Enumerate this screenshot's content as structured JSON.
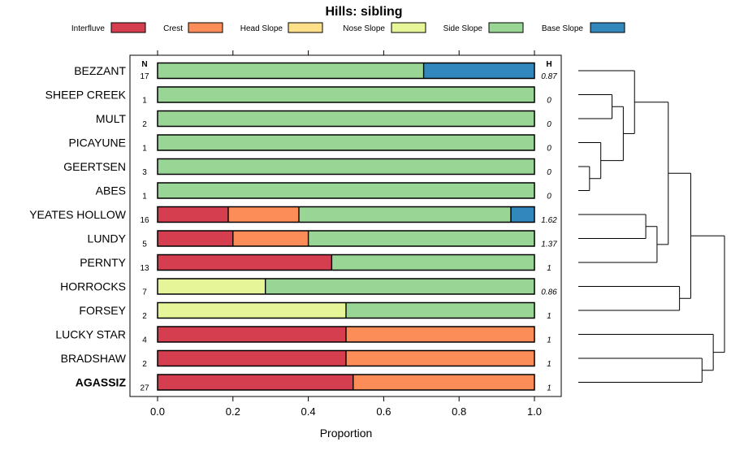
{
  "chart_data": {
    "type": "stacked-horizontal-bar",
    "title": "Hills: sibling",
    "xlabel": "Proportion",
    "xlim": [
      0,
      1
    ],
    "xticks": [
      "0.0",
      "0.2",
      "0.4",
      "0.6",
      "0.8",
      "1.0"
    ],
    "n_header": "N",
    "h_header": "H",
    "legend": [
      {
        "name": "Interfluve",
        "color": "#d53e4f"
      },
      {
        "name": "Crest",
        "color": "#fc8d59"
      },
      {
        "name": "Head Slope",
        "color": "#fee08b"
      },
      {
        "name": "Nose Slope",
        "color": "#e6f598"
      },
      {
        "name": "Side Slope",
        "color": "#99d594"
      },
      {
        "name": "Base Slope",
        "color": "#3288bd"
      }
    ],
    "series_names": [
      "Interfluve",
      "Crest",
      "Head Slope",
      "Nose Slope",
      "Side Slope",
      "Base Slope"
    ],
    "rows": [
      {
        "name": "BEZZANT",
        "n": "17",
        "h": "0.87",
        "bold": false,
        "values": [
          0,
          0,
          0,
          0,
          0.706,
          0.294
        ]
      },
      {
        "name": "SHEEP CREEK",
        "n": "1",
        "h": "0",
        "bold": false,
        "values": [
          0,
          0,
          0,
          0,
          1,
          0
        ]
      },
      {
        "name": "MULT",
        "n": "2",
        "h": "0",
        "bold": false,
        "values": [
          0,
          0,
          0,
          0,
          1,
          0
        ]
      },
      {
        "name": "PICAYUNE",
        "n": "1",
        "h": "0",
        "bold": false,
        "values": [
          0,
          0,
          0,
          0,
          1,
          0
        ]
      },
      {
        "name": "GEERTSEN",
        "n": "3",
        "h": "0",
        "bold": false,
        "values": [
          0,
          0,
          0,
          0,
          1,
          0
        ]
      },
      {
        "name": "ABES",
        "n": "1",
        "h": "0",
        "bold": false,
        "values": [
          0,
          0,
          0,
          0,
          1,
          0
        ]
      },
      {
        "name": "YEATES HOLLOW",
        "n": "16",
        "h": "1.62",
        "bold": false,
        "values": [
          0.1875,
          0.1875,
          0,
          0,
          0.5625,
          0.0625
        ]
      },
      {
        "name": "LUNDY",
        "n": "5",
        "h": "1.37",
        "bold": false,
        "values": [
          0.2,
          0.2,
          0,
          0,
          0.6,
          0
        ]
      },
      {
        "name": "PERNTY",
        "n": "13",
        "h": "1",
        "bold": false,
        "values": [
          0.462,
          0,
          0,
          0,
          0.538,
          0
        ]
      },
      {
        "name": "HORROCKS",
        "n": "7",
        "h": "0.86",
        "bold": false,
        "values": [
          0,
          0,
          0,
          0.286,
          0.714,
          0
        ]
      },
      {
        "name": "FORSEY",
        "n": "2",
        "h": "1",
        "bold": false,
        "values": [
          0,
          0,
          0,
          0.5,
          0.5,
          0
        ]
      },
      {
        "name": "LUCKY STAR",
        "n": "4",
        "h": "1",
        "bold": false,
        "values": [
          0.5,
          0.5,
          0,
          0,
          0,
          0
        ]
      },
      {
        "name": "BRADSHAW",
        "n": "2",
        "h": "1",
        "bold": false,
        "values": [
          0.5,
          0.5,
          0,
          0,
          0,
          0
        ]
      },
      {
        "name": "AGASSIZ",
        "n": "27",
        "h": "1",
        "bold": true,
        "values": [
          0.519,
          0.481,
          0,
          0,
          0,
          0
        ]
      }
    ],
    "dendrogram_merges": [
      [
        4,
        5
      ],
      [
        3,
        -1
      ],
      [
        1,
        2
      ],
      [
        -3,
        -2
      ],
      [
        0,
        -4
      ],
      [
        6,
        7
      ],
      [
        -6,
        8
      ],
      [
        -5,
        -7
      ],
      [
        9,
        10
      ],
      [
        -8,
        -9
      ],
      [
        12,
        13
      ],
      [
        11,
        -11
      ],
      [
        -10,
        -12
      ]
    ]
  }
}
